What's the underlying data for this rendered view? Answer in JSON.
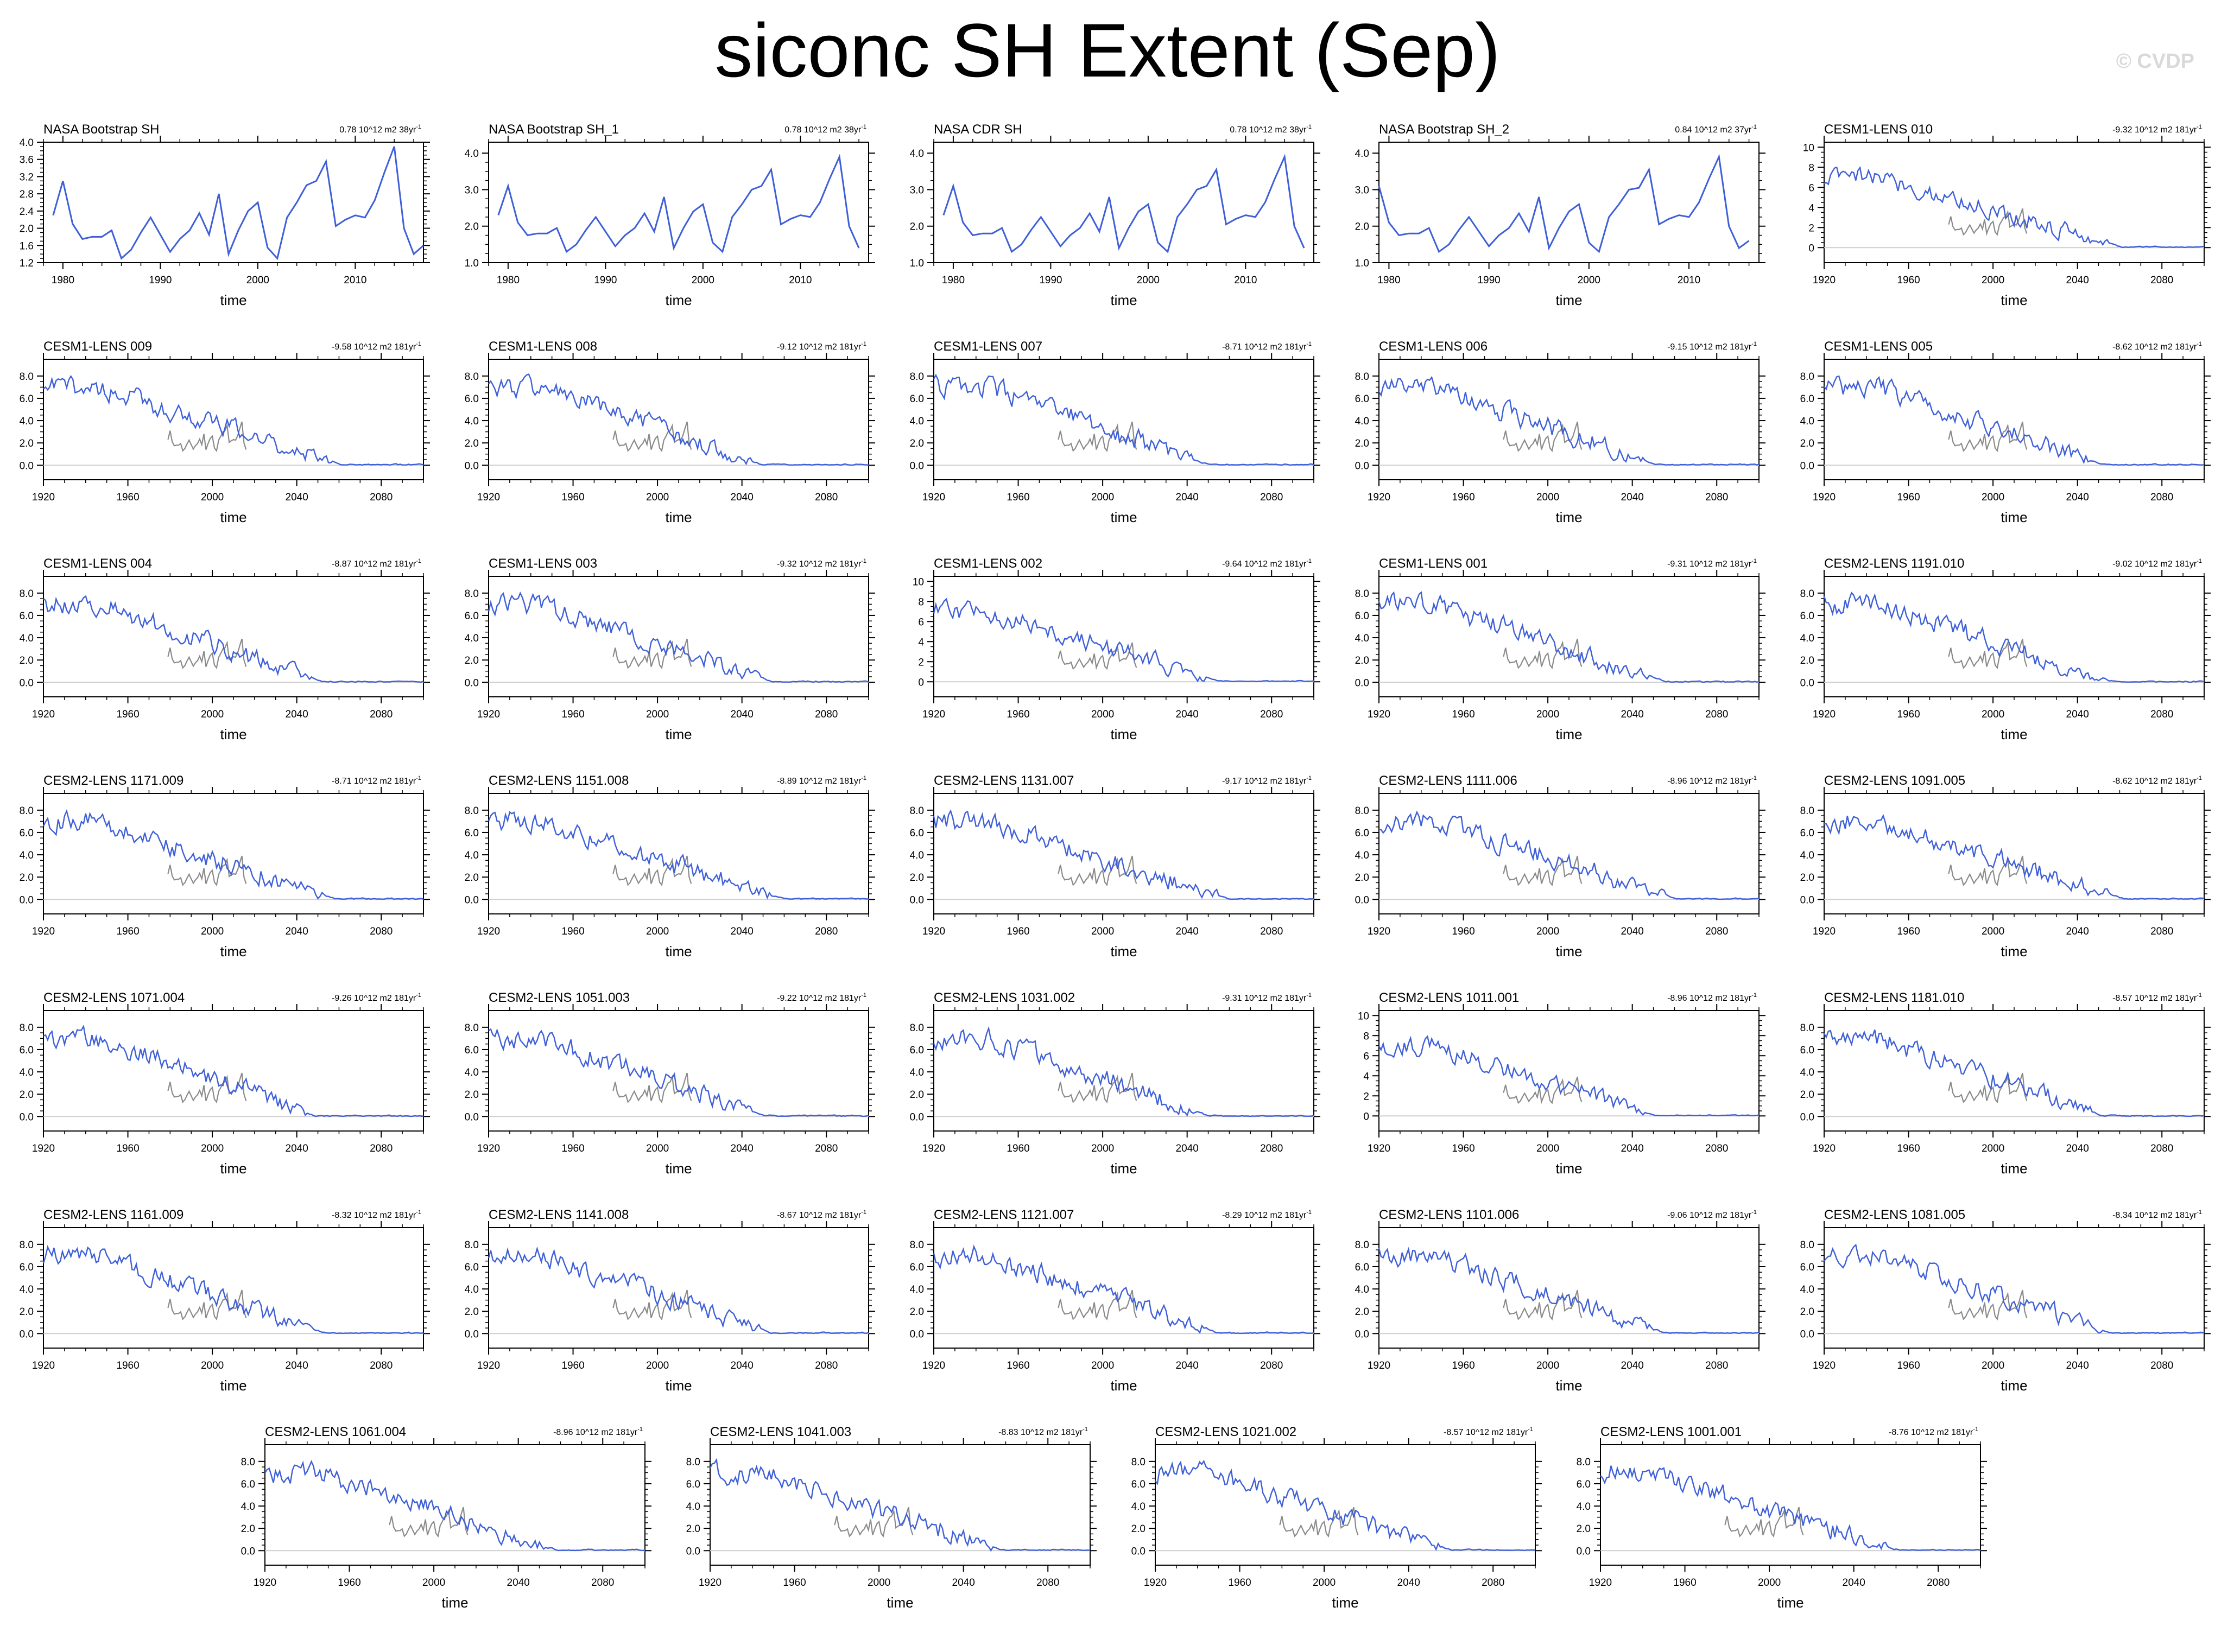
{
  "title": "siconc SH Extent (Sep)",
  "watermark": "© CVDP",
  "colors": {
    "model_line": "#3e5fd8",
    "obs_overlay": "#8a8a8a",
    "zero_line": "#cfcfcf",
    "axes": "#000000"
  },
  "chart_data": [
    {
      "type": "line",
      "name": "NASA Bootstrap SH",
      "trend": "0.78 10^12 m2 38yr",
      "xlabel": "time",
      "xlim": [
        1978,
        2017
      ],
      "ylim": [
        1.2,
        4.0
      ],
      "xticks": [
        1980,
        1990,
        2000,
        2010
      ],
      "yticks": [
        1.2,
        1.6,
        2.0,
        2.4,
        2.8,
        3.2,
        3.6,
        4.0
      ],
      "ytick_labels": [
        "1.2",
        "1.6",
        "2.0",
        "2.4",
        "2.8",
        "3.2",
        "3.6",
        "4.0"
      ],
      "x": [
        1979,
        1980,
        1981,
        1982,
        1983,
        1984,
        1985,
        1986,
        1987,
        1988,
        1989,
        1990,
        1991,
        1992,
        1993,
        1994,
        1995,
        1996,
        1997,
        1998,
        1999,
        2000,
        2001,
        2002,
        2003,
        2004,
        2005,
        2006,
        2007,
        2008,
        2009,
        2010,
        2011,
        2012,
        2013,
        2014,
        2015,
        2016,
        2017
      ],
      "values": [
        2.3,
        3.1,
        2.1,
        1.75,
        1.8,
        1.8,
        1.95,
        1.3,
        1.5,
        1.9,
        2.25,
        1.85,
        1.45,
        1.75,
        1.95,
        2.35,
        1.85,
        2.8,
        1.4,
        1.95,
        2.4,
        2.6,
        1.55,
        1.3,
        2.25,
        2.6,
        3.0,
        3.1,
        3.55,
        2.05,
        2.2,
        2.3,
        2.25,
        2.65,
        3.3,
        3.9,
        2.0,
        1.4,
        1.6
      ]
    },
    {
      "type": "line",
      "name": "NASA Bootstrap SH_1",
      "trend": "0.78 10^12 m2 38yr",
      "xlabel": "time",
      "xlim": [
        1978,
        2017
      ],
      "ylim": [
        1.0,
        4.3
      ],
      "xticks": [
        1980,
        1990,
        2000,
        2010
      ],
      "yticks": [
        1.0,
        2.0,
        3.0,
        4.0
      ],
      "ytick_labels": [
        "1.0",
        "2.0",
        "3.0",
        "4.0"
      ],
      "x": [
        1979,
        1980,
        1981,
        1982,
        1983,
        1984,
        1985,
        1986,
        1987,
        1988,
        1989,
        1990,
        1991,
        1992,
        1993,
        1994,
        1995,
        1996,
        1997,
        1998,
        1999,
        2000,
        2001,
        2002,
        2003,
        2004,
        2005,
        2006,
        2007,
        2008,
        2009,
        2010,
        2011,
        2012,
        2013,
        2014,
        2015,
        2016
      ],
      "values": [
        2.3,
        3.1,
        2.1,
        1.75,
        1.8,
        1.8,
        1.95,
        1.3,
        1.5,
        1.9,
        2.25,
        1.85,
        1.45,
        1.75,
        1.95,
        2.35,
        1.85,
        2.8,
        1.4,
        1.95,
        2.4,
        2.6,
        1.55,
        1.3,
        2.25,
        2.6,
        3.0,
        3.1,
        3.55,
        2.05,
        2.2,
        2.3,
        2.25,
        2.65,
        3.3,
        3.9,
        2.0,
        1.4
      ]
    },
    {
      "type": "line",
      "name": "NASA CDR SH",
      "trend": "0.78 10^12 m2 38yr",
      "xlabel": "time",
      "xlim": [
        1978,
        2017
      ],
      "ylim": [
        1.0,
        4.3
      ],
      "xticks": [
        1980,
        1990,
        2000,
        2010
      ],
      "yticks": [
        1.0,
        2.0,
        3.0,
        4.0
      ],
      "ytick_labels": [
        "1.0",
        "2.0",
        "3.0",
        "4.0"
      ],
      "x": [
        1979,
        1980,
        1981,
        1982,
        1983,
        1984,
        1985,
        1986,
        1987,
        1988,
        1989,
        1990,
        1991,
        1992,
        1993,
        1994,
        1995,
        1996,
        1997,
        1998,
        1999,
        2000,
        2001,
        2002,
        2003,
        2004,
        2005,
        2006,
        2007,
        2008,
        2009,
        2010,
        2011,
        2012,
        2013,
        2014,
        2015,
        2016
      ],
      "values": [
        2.3,
        3.1,
        2.1,
        1.75,
        1.8,
        1.8,
        1.95,
        1.3,
        1.5,
        1.9,
        2.25,
        1.85,
        1.45,
        1.75,
        1.95,
        2.35,
        1.85,
        2.8,
        1.4,
        1.95,
        2.4,
        2.6,
        1.55,
        1.3,
        2.25,
        2.6,
        3.0,
        3.1,
        3.55,
        2.05,
        2.2,
        2.3,
        2.25,
        2.65,
        3.3,
        3.9,
        2.0,
        1.4
      ]
    },
    {
      "type": "line",
      "name": "NASA Bootstrap SH_2",
      "trend": "0.84 10^12 m2 37yr",
      "xlabel": "time",
      "xlim": [
        1979,
        2017
      ],
      "ylim": [
        1.0,
        4.3
      ],
      "xticks": [
        1980,
        1990,
        2000,
        2010
      ],
      "yticks": [
        1.0,
        2.0,
        3.0,
        4.0
      ],
      "ytick_labels": [
        "1.0",
        "2.0",
        "3.0",
        "4.0"
      ],
      "x": [
        1979,
        1980,
        1981,
        1982,
        1983,
        1984,
        1985,
        1986,
        1987,
        1988,
        1989,
        1990,
        1991,
        1992,
        1993,
        1994,
        1995,
        1996,
        1997,
        1998,
        1999,
        2000,
        2001,
        2002,
        2003,
        2004,
        2005,
        2006,
        2007,
        2008,
        2009,
        2010,
        2011,
        2012,
        2013,
        2014,
        2015,
        2016
      ],
      "values": [
        3.1,
        2.1,
        1.75,
        1.8,
        1.8,
        1.95,
        1.3,
        1.5,
        1.9,
        2.25,
        1.85,
        1.45,
        1.75,
        1.95,
        2.35,
        1.85,
        2.8,
        1.4,
        1.95,
        2.4,
        2.6,
        1.55,
        1.3,
        2.25,
        2.6,
        3.0,
        3.05,
        3.55,
        2.05,
        2.2,
        2.3,
        2.25,
        2.65,
        3.3,
        3.9,
        2.0,
        1.4,
        1.6
      ]
    },
    {
      "name": "CESM1-LENS 010",
      "trend": "-9.32 10^12 m2 181yr",
      "yticks": [
        0,
        2,
        4,
        6,
        8,
        10
      ],
      "ytick_labels": [
        "0",
        "2",
        "4",
        "6",
        "8",
        "10"
      ],
      "ylim": [
        -1.5,
        10.5
      ]
    },
    {
      "name": "CESM1-LENS 009",
      "trend": "-9.58 10^12 m2 181yr"
    },
    {
      "name": "CESM1-LENS 008",
      "trend": "-9.12 10^12 m2 181yr"
    },
    {
      "name": "CESM1-LENS 007",
      "trend": "-8.71 10^12 m2 181yr"
    },
    {
      "name": "CESM1-LENS 006",
      "trend": "-9.15 10^12 m2 181yr"
    },
    {
      "name": "CESM1-LENS 005",
      "trend": "-8.62 10^12 m2 181yr"
    },
    {
      "name": "CESM1-LENS 004",
      "trend": "-8.87 10^12 m2 181yr"
    },
    {
      "name": "CESM1-LENS 003",
      "trend": "-9.32 10^12 m2 181yr"
    },
    {
      "name": "CESM1-LENS 002",
      "trend": "-9.64 10^12 m2 181yr",
      "yticks": [
        0,
        2,
        4,
        6,
        8,
        10
      ],
      "ytick_labels": [
        "0",
        "2",
        "4",
        "6",
        "8",
        "10"
      ],
      "ylim": [
        -1.5,
        10.5
      ]
    },
    {
      "name": "CESM1-LENS 001",
      "trend": "-9.31 10^12 m2 181yr"
    },
    {
      "name": "CESM2-LENS 1191.010",
      "trend": "-9.02 10^12 m2 181yr"
    },
    {
      "name": "CESM2-LENS 1171.009",
      "trend": "-8.71 10^12 m2 181yr"
    },
    {
      "name": "CESM2-LENS 1151.008",
      "trend": "-8.89 10^12 m2 181yr"
    },
    {
      "name": "CESM2-LENS 1131.007",
      "trend": "-9.17 10^12 m2 181yr"
    },
    {
      "name": "CESM2-LENS 1111.006",
      "trend": "-8.96 10^12 m2 181yr"
    },
    {
      "name": "CESM2-LENS 1091.005",
      "trend": "-8.62 10^12 m2 181yr"
    },
    {
      "name": "CESM2-LENS 1071.004",
      "trend": "-9.26 10^12 m2 181yr"
    },
    {
      "name": "CESM2-LENS 1051.003",
      "trend": "-9.22 10^12 m2 181yr"
    },
    {
      "name": "CESM2-LENS 1031.002",
      "trend": "-9.31 10^12 m2 181yr"
    },
    {
      "name": "CESM2-LENS 1011.001",
      "trend": "-8.96 10^12 m2 181yr",
      "yticks": [
        0,
        2,
        4,
        6,
        8,
        10
      ],
      "ytick_labels": [
        "0",
        "2",
        "4",
        "6",
        "8",
        "10"
      ],
      "ylim": [
        -1.5,
        10.5
      ]
    },
    {
      "name": "CESM2-LENS 1181.010",
      "trend": "-8.57 10^12 m2 181yr"
    },
    {
      "name": "CESM2-LENS 1161.009",
      "trend": "-8.32 10^12 m2 181yr"
    },
    {
      "name": "CESM2-LENS 1141.008",
      "trend": "-8.67 10^12 m2 181yr"
    },
    {
      "name": "CESM2-LENS 1121.007",
      "trend": "-8.29 10^12 m2 181yr"
    },
    {
      "name": "CESM2-LENS 1101.006",
      "trend": "-9.06 10^12 m2 181yr"
    },
    {
      "name": "CESM2-LENS 1081.005",
      "trend": "-8.34 10^12 m2 181yr"
    },
    {
      "name": "CESM2-LENS 1061.004",
      "trend": "-8.96 10^12 m2 181yr"
    },
    {
      "name": "CESM2-LENS 1041.003",
      "trend": "-8.83 10^12 m2 181yr"
    },
    {
      "name": "CESM2-LENS 1021.002",
      "trend": "-8.57 10^12 m2 181yr"
    },
    {
      "name": "CESM2-LENS 1001.001",
      "trend": "-8.76 10^12 m2 181yr"
    }
  ],
  "model_defaults": {
    "type": "line",
    "xlabel": "time",
    "xlim": [
      1920,
      2100
    ],
    "xticks": [
      1920,
      1960,
      2000,
      2040,
      2080
    ],
    "ylim": [
      -1.3,
      9.5
    ],
    "yticks": [
      0,
      2,
      4,
      6,
      8
    ],
    "ytick_labels": [
      "0.0",
      "2.0",
      "4.0",
      "6.0",
      "8.0"
    ],
    "series_shape": "approx. 7 (1920-1950), linear decline to ~0 by 2050-2060, ~0 to 2100",
    "obs_overlay_range": [
      1979,
      2016
    ]
  }
}
